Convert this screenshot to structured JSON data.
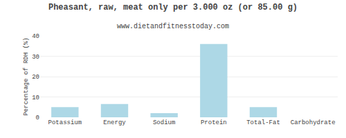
{
  "chart_data": {
    "type": "bar",
    "title": "Pheasant, raw, meat only per 3.000 oz (or 85.00 g)",
    "subtitle": "www.dietandfitnesstoday.com",
    "categories": [
      "Potassium",
      "Energy",
      "Sodium",
      "Protein",
      "Total-Fat",
      "Carbohydrate"
    ],
    "values": [
      5.0,
      6.5,
      2.0,
      36.0,
      5.0,
      0.0
    ],
    "color": "#add8e6",
    "ylabel": "Percentage of RDH (%)",
    "ylim": [
      0,
      40
    ],
    "yticks": [
      0,
      10,
      20,
      30,
      40
    ],
    "grid": true
  }
}
